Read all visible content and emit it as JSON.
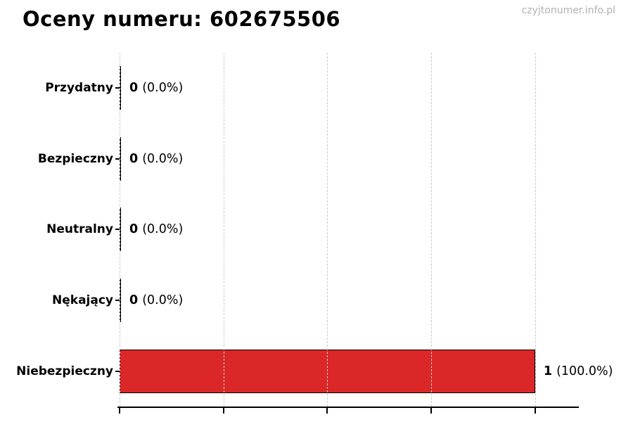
{
  "title": "Oceny numeru: 602675506",
  "watermark": "czyjtonumer.info.pl",
  "chart_data": {
    "type": "bar",
    "orientation": "horizontal",
    "title": "Oceny numeru: 602675506",
    "categories": [
      "Przydatny",
      "Bezpieczny",
      "Neutralny",
      "Nękający",
      "Niebezpieczny"
    ],
    "values": [
      0,
      0,
      0,
      0,
      1
    ],
    "value_labels": [
      {
        "count": "0",
        "percent": "(0.0%)"
      },
      {
        "count": "0",
        "percent": "(0.0%)"
      },
      {
        "count": "0",
        "percent": "(0.0%)"
      },
      {
        "count": "0",
        "percent": "(0.0%)"
      },
      {
        "count": "1",
        "percent": "(100.0%)"
      }
    ],
    "bar_color": "#db2727",
    "bar_edge_color": "#000000",
    "xlim": [
      0,
      1.1
    ],
    "xticks": [
      0,
      0.25,
      0.5,
      0.75,
      1.0
    ],
    "xtick_labels_visible": false,
    "grid": "vertical-dashed",
    "gridline_color": "#c9c9c9",
    "background_color": "#ffffff"
  }
}
